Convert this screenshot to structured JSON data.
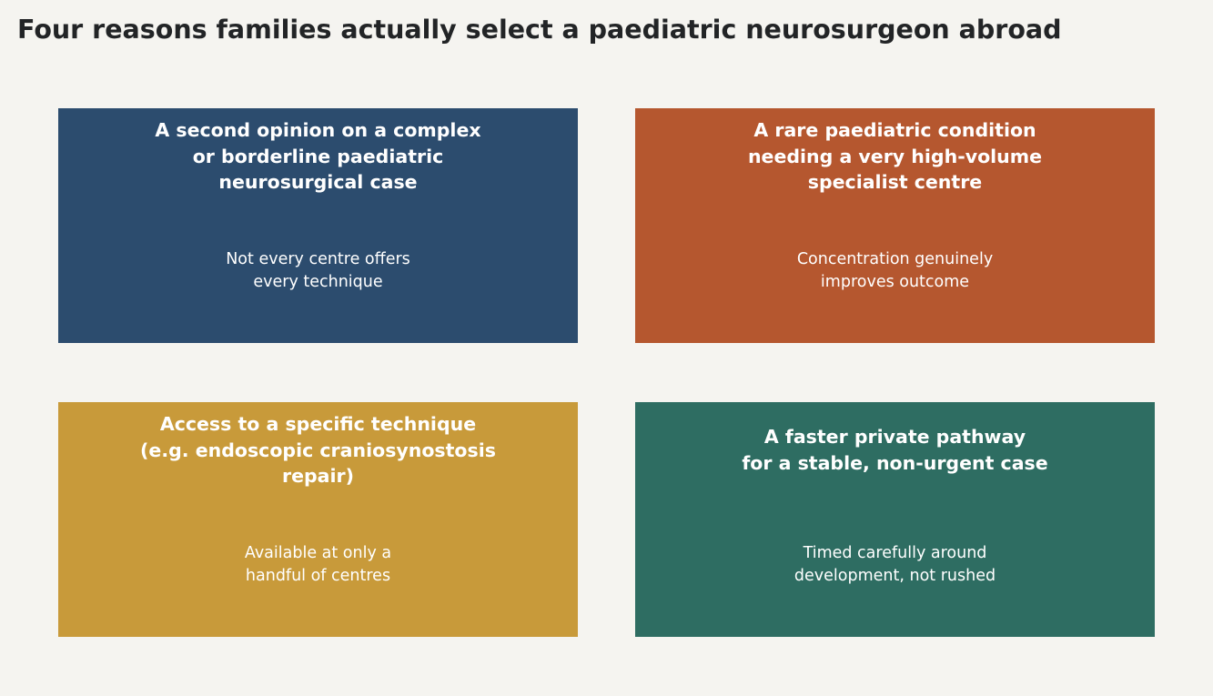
{
  "title": "Four reasons families actually select a paediatric neurosurgeon abroad",
  "cards": [
    {
      "heading": "A second opinion on a complex\nor borderline paediatric\nneurosurgical case",
      "subtext": "Not every centre offers\nevery technique",
      "color": "#2c4c6e"
    },
    {
      "heading": "A rare paediatric condition\nneeding a very high-volume\nspecialist centre",
      "subtext": "Concentration genuinely\nimproves outcome",
      "color": "#b5572f"
    },
    {
      "heading": "Access to a specific technique\n(e.g. endoscopic craniosynostosis\nrepair)",
      "subtext": "Available at only a\nhandful of centres",
      "color": "#c89a3a"
    },
    {
      "heading": "A faster private pathway\nfor a stable, non-urgent case",
      "subtext": "Timed carefully around\ndevelopment, not rushed",
      "color": "#2e6d62"
    }
  ]
}
